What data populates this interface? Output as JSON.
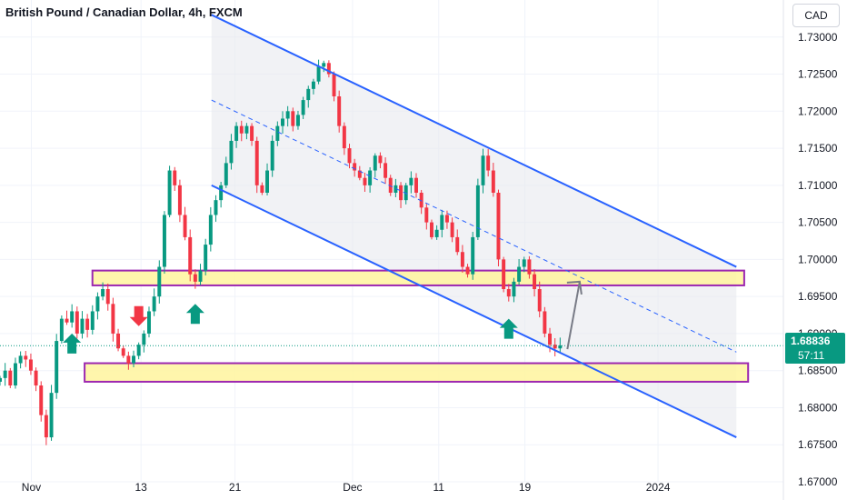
{
  "header": {
    "title": "British Pound / Canadian Dollar, 4h, FXCM",
    "currency_button": "CAD"
  },
  "last_price": {
    "price": "1.68836",
    "countdown": "57:11",
    "color": "#089981"
  },
  "chart_data": {
    "type": "candlestick",
    "title": "British Pound / Canadian Dollar, 4h, FXCM",
    "symbol": "GBPCAD",
    "timeframe": "4h",
    "source": "FXCM",
    "y_axis": {
      "position": "right",
      "ylim": [
        1.67,
        1.735
      ],
      "ticks": [
        "1.73000",
        "1.72500",
        "1.72000",
        "1.71500",
        "1.71000",
        "1.70500",
        "1.70000",
        "1.69500",
        "1.69000",
        "1.68500",
        "1.68000",
        "1.67500",
        "1.67000"
      ]
    },
    "x_axis": {
      "ticks": [
        "Nov",
        "13",
        "21",
        "Dec",
        "11",
        "19",
        "2024"
      ]
    },
    "grid": true,
    "colors": {
      "up": "#089981",
      "down": "#f23645",
      "channel": "#2962ff",
      "zone_fill": "#fff59d",
      "zone_border": "#9c27b0",
      "arrow_up": "#089981",
      "arrow_down": "#f23645",
      "projection": "#787b86"
    },
    "price_path": [
      1.684,
      1.685,
      1.683,
      1.686,
      1.687,
      1.6865,
      1.685,
      1.683,
      1.679,
      1.676,
      1.682,
      1.689,
      1.692,
      1.6915,
      1.693,
      1.69,
      1.692,
      1.6905,
      1.693,
      1.695,
      1.696,
      1.694,
      1.69,
      1.688,
      1.687,
      1.686,
      1.687,
      1.6885,
      1.69,
      1.693,
      1.695,
      1.699,
      1.706,
      1.712,
      1.71,
      1.706,
      1.703,
      1.698,
      1.697,
      1.6985,
      1.702,
      1.706,
      1.708,
      1.71,
      1.713,
      1.716,
      1.718,
      1.717,
      1.718,
      1.716,
      1.71,
      1.709,
      1.712,
      1.716,
      1.718,
      1.719,
      1.72,
      1.718,
      1.7195,
      1.7215,
      1.723,
      1.724,
      1.726,
      1.7265,
      1.725,
      1.722,
      1.718,
      1.715,
      1.713,
      1.712,
      1.711,
      1.71,
      1.712,
      1.714,
      1.713,
      1.711,
      1.709,
      1.71,
      1.708,
      1.71,
      1.711,
      1.709,
      1.707,
      1.705,
      1.703,
      1.704,
      1.706,
      1.705,
      1.703,
      1.701,
      1.699,
      1.698,
      1.703,
      1.71,
      1.714,
      1.712,
      1.709,
      1.7,
      1.696,
      1.695,
      1.697,
      1.699,
      1.7,
      1.698,
      1.696,
      1.693,
      1.69,
      1.6885,
      1.688,
      1.6884
    ],
    "x_dates": [
      "Nov",
      "13",
      "21",
      "Dec",
      "11",
      "19",
      "2024"
    ],
    "channel": {
      "upper_line": [
        [
          0.27,
          1.733
        ],
        [
          0.94,
          1.699
        ]
      ],
      "lower_line": [
        [
          0.27,
          1.71
        ],
        [
          0.94,
          1.676
        ]
      ],
      "mid_line": [
        [
          0.27,
          1.7215
        ],
        [
          0.94,
          1.6875
        ]
      ]
    },
    "zones": [
      {
        "name": "resistance",
        "low": 1.6965,
        "high": 1.6985
      },
      {
        "name": "support",
        "low": 1.6835,
        "high": 1.686
      }
    ],
    "signals": [
      {
        "type": "down",
        "price_index": 27
      },
      {
        "type": "up",
        "price_index": 14
      },
      {
        "type": "up",
        "price_index": 38
      },
      {
        "type": "up",
        "price_index": 99
      }
    ]
  }
}
